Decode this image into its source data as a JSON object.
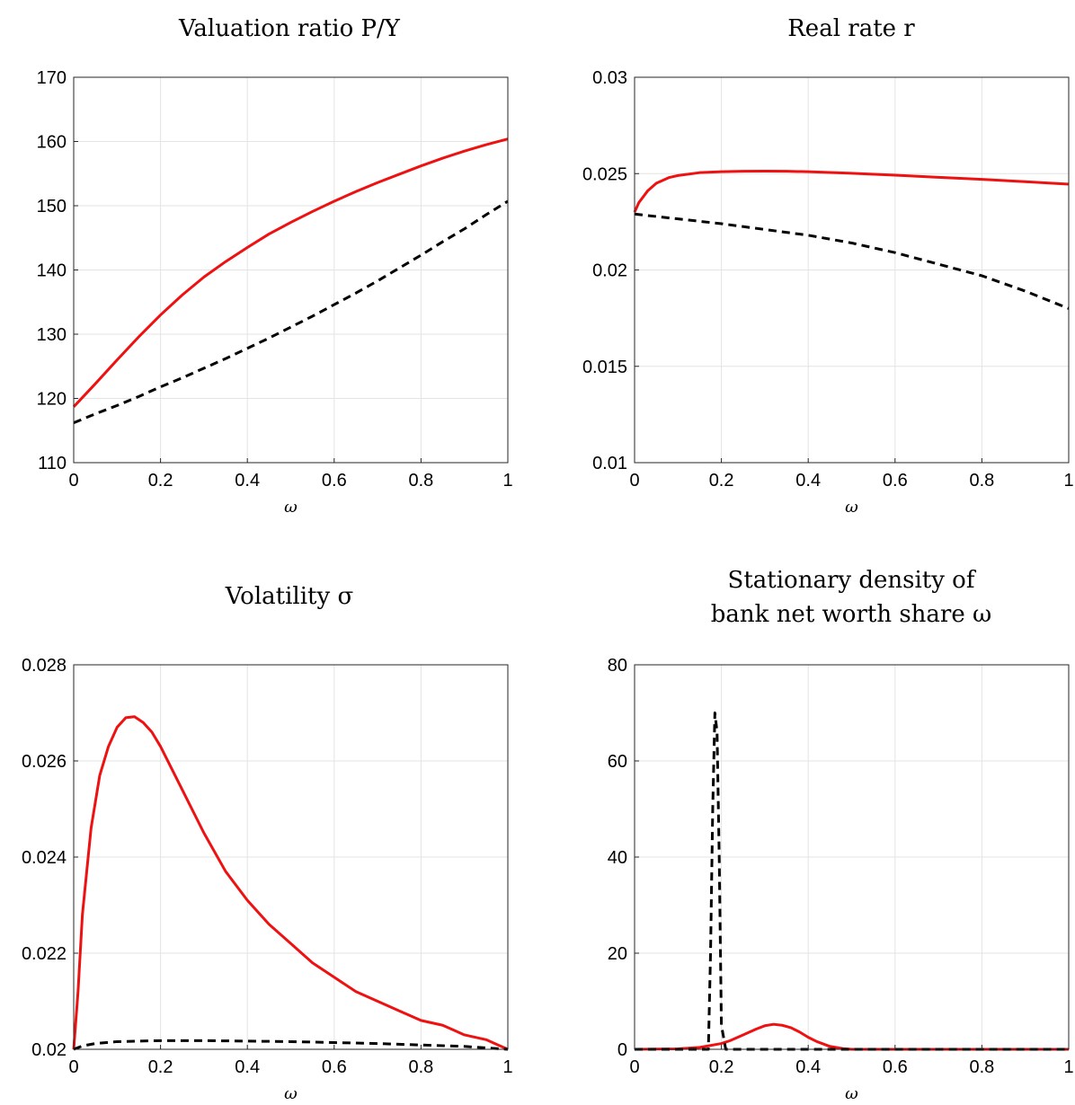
{
  "chart_data": [
    {
      "type": "line",
      "title": "Valuation ratio P/Y",
      "xlabel": "ω",
      "ylabel": "",
      "xlim": [
        0,
        1
      ],
      "ylim": [
        110,
        170
      ],
      "xticks": [
        "0",
        "0.2",
        "0.4",
        "0.6",
        "0.8",
        "1"
      ],
      "yticks": [
        "110",
        "120",
        "130",
        "140",
        "150",
        "160",
        "170"
      ],
      "grid": true,
      "series": [
        {
          "style": "solid",
          "color": "#ee1111",
          "x": [
            0,
            0.05,
            0.1,
            0.15,
            0.2,
            0.25,
            0.3,
            0.35,
            0.4,
            0.45,
            0.5,
            0.55,
            0.6,
            0.65,
            0.7,
            0.75,
            0.8,
            0.85,
            0.9,
            0.95,
            1
          ],
          "y": [
            118.7,
            122.3,
            126.0,
            129.6,
            133.0,
            136.1,
            138.9,
            141.3,
            143.5,
            145.6,
            147.4,
            149.1,
            150.7,
            152.2,
            153.6,
            154.9,
            156.2,
            157.4,
            158.5,
            159.5,
            160.4
          ]
        },
        {
          "style": "dashed",
          "color": "#000000",
          "x": [
            0,
            0.05,
            0.1,
            0.15,
            0.2,
            0.25,
            0.3,
            0.35,
            0.4,
            0.45,
            0.5,
            0.55,
            0.6,
            0.65,
            0.7,
            0.75,
            0.8,
            0.85,
            0.9,
            0.95,
            1
          ],
          "y": [
            116.2,
            117.6,
            118.9,
            120.3,
            121.8,
            123.2,
            124.7,
            126.2,
            127.8,
            129.4,
            131.1,
            132.8,
            134.6,
            136.4,
            138.3,
            140.3,
            142.3,
            144.4,
            146.4,
            148.6,
            150.7
          ]
        }
      ]
    },
    {
      "type": "line",
      "title": "Real rate r",
      "xlabel": "ω",
      "ylabel": "",
      "xlim": [
        0,
        1
      ],
      "ylim": [
        0.01,
        0.03
      ],
      "xticks": [
        "0",
        "0.2",
        "0.4",
        "0.6",
        "0.8",
        "1"
      ],
      "yticks": [
        "0.01",
        "0.015",
        "0.02",
        "0.025",
        "0.03"
      ],
      "grid": true,
      "series": [
        {
          "style": "solid",
          "color": "#ee1111",
          "x": [
            0,
            0.01,
            0.03,
            0.05,
            0.08,
            0.1,
            0.15,
            0.2,
            0.25,
            0.3,
            0.35,
            0.4,
            0.5,
            0.6,
            0.7,
            0.8,
            0.9,
            1
          ],
          "y": [
            0.023,
            0.0235,
            0.0241,
            0.0245,
            0.0248,
            0.0249,
            0.02505,
            0.0251,
            0.02512,
            0.02513,
            0.02512,
            0.0251,
            0.02502,
            0.02492,
            0.02481,
            0.0247,
            0.02458,
            0.02445
          ]
        },
        {
          "style": "dashed",
          "color": "#000000",
          "x": [
            0,
            0.1,
            0.2,
            0.3,
            0.4,
            0.5,
            0.6,
            0.7,
            0.8,
            0.9,
            1
          ],
          "y": [
            0.0229,
            0.02265,
            0.0224,
            0.0221,
            0.0218,
            0.0214,
            0.0209,
            0.0203,
            0.0197,
            0.0189,
            0.018
          ]
        }
      ]
    },
    {
      "type": "line",
      "title": "Volatility σ",
      "xlabel": "ω",
      "ylabel": "",
      "xlim": [
        0,
        1
      ],
      "ylim": [
        0.02,
        0.028
      ],
      "xticks": [
        "0",
        "0.2",
        "0.4",
        "0.6",
        "0.8",
        "1"
      ],
      "yticks": [
        "0.02",
        "0.022",
        "0.024",
        "0.026",
        "0.028"
      ],
      "grid": true,
      "series": [
        {
          "style": "solid",
          "color": "#ee1111",
          "x": [
            0,
            0.01,
            0.02,
            0.04,
            0.06,
            0.08,
            0.1,
            0.12,
            0.14,
            0.16,
            0.18,
            0.2,
            0.25,
            0.3,
            0.35,
            0.4,
            0.45,
            0.5,
            0.55,
            0.6,
            0.65,
            0.7,
            0.75,
            0.8,
            0.85,
            0.9,
            0.95,
            0.98,
            1
          ],
          "y": [
            0.02,
            0.0212,
            0.0228,
            0.0246,
            0.0257,
            0.0263,
            0.0267,
            0.0269,
            0.02692,
            0.0268,
            0.0266,
            0.0263,
            0.0254,
            0.0245,
            0.0237,
            0.0231,
            0.0226,
            0.0222,
            0.0218,
            0.0215,
            0.0212,
            0.021,
            0.0208,
            0.0206,
            0.0205,
            0.0203,
            0.0202,
            0.02008,
            0.02
          ]
        },
        {
          "style": "dashed",
          "color": "#000000",
          "x": [
            0,
            0.02,
            0.05,
            0.1,
            0.15,
            0.2,
            0.3,
            0.4,
            0.5,
            0.6,
            0.7,
            0.8,
            0.9,
            0.95,
            1
          ],
          "y": [
            0.02,
            0.02007,
            0.02012,
            0.02016,
            0.02017,
            0.02018,
            0.02018,
            0.02017,
            0.02016,
            0.02014,
            0.02012,
            0.02009,
            0.02006,
            0.02003,
            0.02
          ]
        }
      ]
    },
    {
      "type": "line",
      "title": "Stationary density of bank net worth share ω",
      "title_lines": [
        "Stationary density of",
        "bank net worth share ω"
      ],
      "xlabel": "ω",
      "ylabel": "",
      "xlim": [
        0,
        1
      ],
      "ylim": [
        0,
        80
      ],
      "xticks": [
        "0",
        "0.2",
        "0.4",
        "0.6",
        "0.8",
        "1"
      ],
      "yticks": [
        "0",
        "20",
        "40",
        "60",
        "80"
      ],
      "grid": true,
      "series": [
        {
          "style": "solid",
          "color": "#ee1111",
          "x": [
            0,
            0.1,
            0.15,
            0.2,
            0.22,
            0.25,
            0.28,
            0.3,
            0.32,
            0.34,
            0.36,
            0.38,
            0.4,
            0.42,
            0.45,
            0.48,
            0.5,
            0.6,
            0.8,
            1
          ],
          "y": [
            0,
            0.1,
            0.4,
            1.2,
            1.8,
            3.0,
            4.2,
            4.9,
            5.2,
            5.0,
            4.5,
            3.6,
            2.5,
            1.6,
            0.6,
            0.15,
            0,
            0,
            0,
            0
          ]
        },
        {
          "style": "dashed",
          "color": "#000000",
          "x": [
            0,
            0.17,
            0.175,
            0.18,
            0.185,
            0.19,
            0.195,
            0.2,
            0.21,
            0.4,
            1
          ],
          "y": [
            0,
            0,
            20,
            50,
            70,
            66,
            40,
            5,
            0,
            0,
            0
          ]
        }
      ]
    }
  ]
}
